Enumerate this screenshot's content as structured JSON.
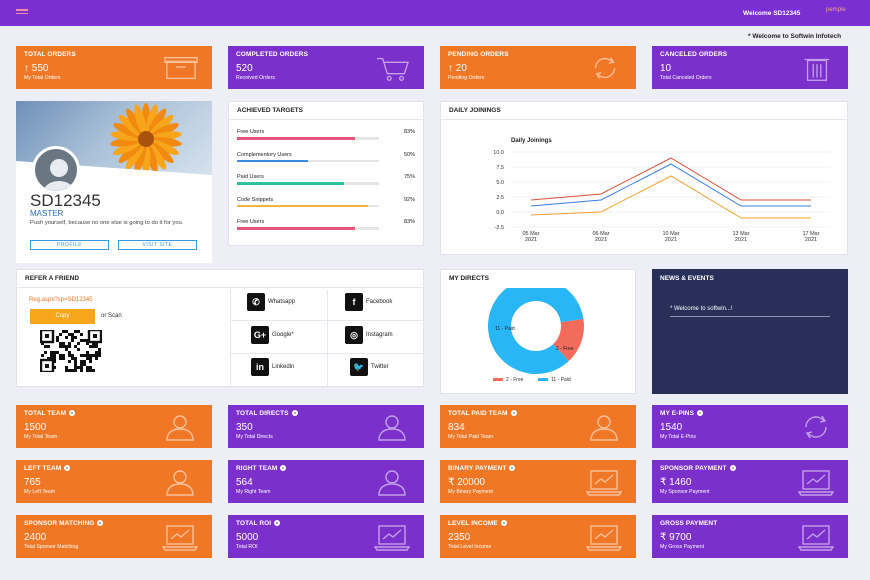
{
  "header": {
    "welcome": "Welcome SD12345",
    "username": "pemple",
    "ticker": "* Welcome to Softwin Infotech"
  },
  "top_cards": [
    {
      "title": "TOTAL ORDERS",
      "value": "↑ 550",
      "sub": "My Total Orders",
      "icon": "box-icon"
    },
    {
      "title": "COMPLETED ORDERS",
      "value": "520",
      "sub": "Received Orders",
      "icon": "cart-icon"
    },
    {
      "title": "PENDING ORDERS",
      "value": "↑ 20",
      "sub": "Pending Orders",
      "icon": "refresh-icon"
    },
    {
      "title": "CANCELED ORDERS",
      "value": "10",
      "sub": "Total Canceled Orders",
      "icon": "trash-icon"
    }
  ],
  "profile": {
    "id": "SD12345",
    "rank": "MASTER",
    "quote": "Push yourself, because no one else is going to do it for you.",
    "profile_btn": "PROFILE",
    "visit_btn": "VISIT SITE"
  },
  "targets": {
    "title": "ACHIEVED TARGETS",
    "items": [
      {
        "label": "Free Users",
        "pct": "83%",
        "value": 83,
        "color": "#e9557a"
      },
      {
        "label": "Complementory Users",
        "pct": "50%",
        "value": 50,
        "color": "#3b8de0"
      },
      {
        "label": "Paid Users",
        "pct": "75%",
        "value": 75,
        "color": "#2fc4a0"
      },
      {
        "label": "Code Snippets",
        "pct": "92%",
        "value": 92,
        "color": "#f2b33d"
      },
      {
        "label": "Free Users",
        "pct": "83%",
        "value": 83,
        "color": "#e9557a"
      }
    ]
  },
  "joinings": {
    "title": "DAILY JOININGS"
  },
  "chart_data": {
    "type": "line",
    "title": "Daily Joinings",
    "categories": [
      "05 Mar 2021",
      "06 Mar 2021",
      "10 Mar 2021",
      "13 Mar 2021",
      "17 Mar 2021"
    ],
    "yticks": [
      "10.0",
      "7.5",
      "5.0",
      "2.5",
      "0.0",
      "-2.5"
    ],
    "ylim": [
      -2.5,
      10
    ],
    "series": [
      {
        "values": [
          2,
          3,
          9,
          2,
          2
        ],
        "color": "#e0503a"
      },
      {
        "values": [
          1,
          2,
          8,
          1,
          1
        ],
        "color": "#3a7de0"
      },
      {
        "values": [
          -0.5,
          0,
          6,
          -1,
          -1
        ],
        "color": "#f2a02e"
      }
    ]
  },
  "refer": {
    "title": "REFER A FRIEND",
    "link": "Reg.aspx?sp=SD12345",
    "copy": "Copy",
    "or_scan": "or Scan",
    "socials": [
      {
        "label": "Whatsapp",
        "glyph": "✆"
      },
      {
        "label": "Facebook",
        "glyph": "f"
      },
      {
        "label": "Google*",
        "glyph": "G+"
      },
      {
        "label": "Instagram",
        "glyph": "◎"
      },
      {
        "label": "Linkedin",
        "glyph": "in"
      },
      {
        "label": "Twitter",
        "glyph": "🐦"
      }
    ]
  },
  "directs": {
    "title": "MY DIRECTS",
    "slice_paid": "11 - Paid",
    "slice_free": "2 - Free",
    "legend_free": "2 - Free",
    "legend_paid": "11 - Paid",
    "free": 2,
    "paid": 11,
    "free_color": "#f26b5b",
    "paid_color": "#29b6f6"
  },
  "news": {
    "title": "NEWS & EVENTS",
    "item": "* Welcome to softwin...!"
  },
  "stat_cards": [
    {
      "title": "TOTAL TEAM",
      "value": "1500",
      "sub": "My Total Team",
      "icon": "user-icon",
      "color": "orange",
      "eye": true
    },
    {
      "title": "TOTAL DIRECTS",
      "value": "350",
      "sub": "My Total Directs",
      "icon": "user-icon",
      "color": "purple",
      "eye": true
    },
    {
      "title": "TOTAL PAID TEAM",
      "value": "834",
      "sub": "My Total Paid Team",
      "icon": "user-icon",
      "color": "orange",
      "eye": true
    },
    {
      "title": "MY E-PINS",
      "value": "1540",
      "sub": "My Total E-Pins",
      "icon": "refresh-icon",
      "color": "purple",
      "eye": true
    },
    {
      "title": "LEFT TEAM",
      "value": "765",
      "sub": "My Left Team",
      "icon": "user-icon",
      "color": "orange",
      "eye": true
    },
    {
      "title": "RIGHT TEAM",
      "value": "564",
      "sub": "My Right Team",
      "icon": "user-icon",
      "color": "purple",
      "eye": true
    },
    {
      "title": "BINARY PAYMENT",
      "value": "₹ 20000",
      "sub": "My Binary Payment",
      "icon": "laptop-chart-icon",
      "color": "orange",
      "eye": true
    },
    {
      "title": "SPONSOR PAYMENT",
      "value": "₹ 1460",
      "sub": "My Sponsor Payment",
      "icon": "laptop-chart-icon",
      "color": "purple",
      "eye": true
    },
    {
      "title": "SPONSOR MATCHING",
      "value": "2400",
      "sub": "Total Sponsor Matching",
      "icon": "laptop-chart-icon",
      "color": "orange",
      "eye": true
    },
    {
      "title": "TOTAL ROI",
      "value": "5000",
      "sub": "Total ROI",
      "icon": "laptop-chart-icon",
      "color": "purple",
      "eye": true
    },
    {
      "title": "LEVEL INCOME",
      "value": "2350",
      "sub": "Total Level Income",
      "icon": "laptop-chart-icon",
      "color": "orange",
      "eye": true
    },
    {
      "title": "GROSS PAYMENT",
      "value": "₹ 9700",
      "sub": "My Gross Payment",
      "icon": "laptop-chart-icon",
      "color": "purple",
      "eye": false
    }
  ]
}
